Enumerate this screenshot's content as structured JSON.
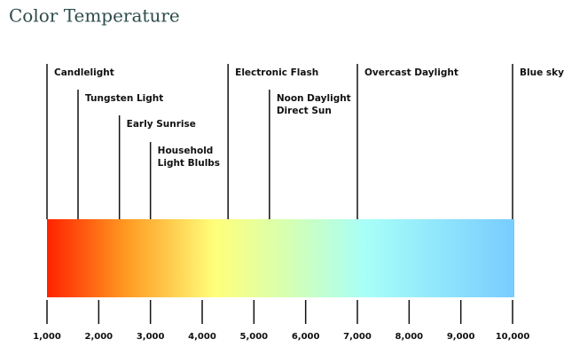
{
  "chart_data": {
    "type": "temperature-scale",
    "title": "Color Temperature",
    "xlim": [
      1000,
      10000
    ],
    "xticks": [
      {
        "value": 1000,
        "label": "1,000"
      },
      {
        "value": 2000,
        "label": "2,000"
      },
      {
        "value": 3000,
        "label": "3,000"
      },
      {
        "value": 4000,
        "label": "4,000"
      },
      {
        "value": 5000,
        "label": "5,000"
      },
      {
        "value": 6000,
        "label": "6,000"
      },
      {
        "value": 7000,
        "label": "7,000"
      },
      {
        "value": 8000,
        "label": "8,000"
      },
      {
        "value": 9000,
        "label": "9,000"
      },
      {
        "value": 10000,
        "label": "10,000"
      }
    ],
    "markers": [
      {
        "lines": [
          "Candlelight"
        ],
        "value": 1000
      },
      {
        "lines": [
          "Tungsten Light"
        ],
        "value": 1600
      },
      {
        "lines": [
          "Early Sunrise"
        ],
        "value": 2400
      },
      {
        "lines": [
          "Household",
          "Light Blulbs"
        ],
        "value": 3000
      },
      {
        "lines": [
          "Electronic Flash"
        ],
        "value": 4500
      },
      {
        "lines": [
          "Noon Daylight",
          "Direct Sun"
        ],
        "value": 5300
      },
      {
        "lines": [
          "Overcast Daylight"
        ],
        "value": 7000
      },
      {
        "lines": [
          "Blue sky"
        ],
        "value": 10000
      }
    ]
  }
}
